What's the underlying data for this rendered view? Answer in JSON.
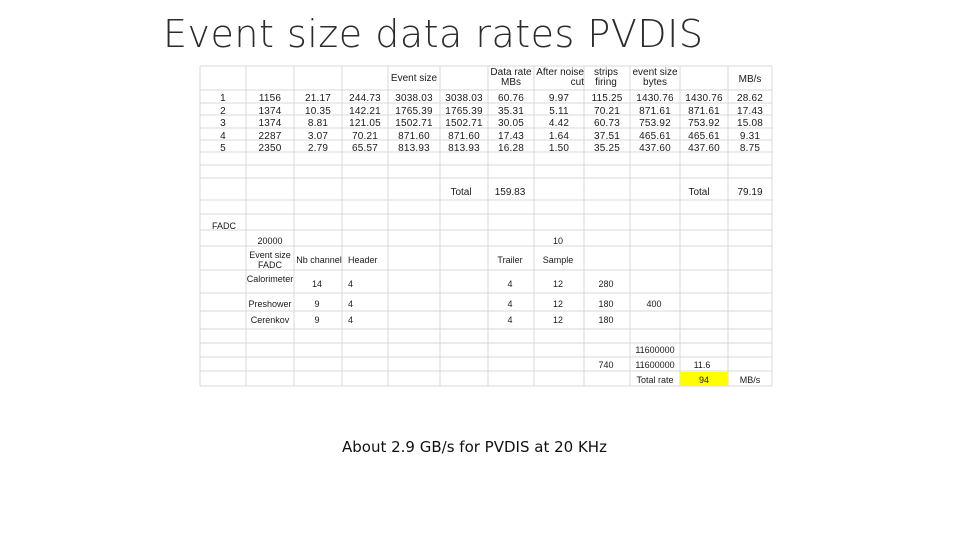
{
  "slide": {
    "title": "Event size data rates PVDIS",
    "footer": "About 2.9 GB/s for PVDIS at 20 KHz"
  },
  "top_table": {
    "headers": {
      "event_size": "Event size",
      "data_rate": "Data rate MBs",
      "after_noise": "After noise cut",
      "strips": "strips firing",
      "event_bytes": "event size bytes",
      "mbs": "MB/s"
    },
    "rows": [
      [
        "1",
        "1156",
        "21.17",
        "244.73",
        "3038.03",
        "3038.03",
        "60.76",
        "9.97",
        "115.25",
        "1430.76",
        "1430.76",
        "28.62"
      ],
      [
        "2",
        "1374",
        "10.35",
        "142.21",
        "1765.39",
        "1765.39",
        "35.31",
        "5.11",
        "70.21",
        "871.61",
        "871.61",
        "17.43"
      ],
      [
        "3",
        "1374",
        "8.81",
        "121.05",
        "1502.71",
        "1502.71",
        "30.05",
        "4.42",
        "60.73",
        "753.92",
        "753.92",
        "15.08"
      ],
      [
        "4",
        "2287",
        "3.07",
        "70.21",
        "871.60",
        "871.60",
        "17.43",
        "1.64",
        "37.51",
        "465.61",
        "465.61",
        "9.31"
      ],
      [
        "5",
        "2350",
        "2.79",
        "65.57",
        "813.93",
        "813.93",
        "16.28",
        "1.50",
        "35.25",
        "437.60",
        "437.60",
        "8.75"
      ]
    ],
    "total_label_1": "Total",
    "total_value_1": "159.83",
    "total_label_2": "Total",
    "total_value_2": "79.19"
  },
  "fadc_table": {
    "section_label": "FADC",
    "rate_value": "20000",
    "ten_value": "10",
    "col_event_size_fadc": "Event size FADC",
    "col_nb_channel": "Nb channel",
    "col_header": "Header",
    "col_trailer": "Trailer",
    "col_sample": "Sample",
    "rows": [
      {
        "name": "Calorimeter",
        "nb": "14",
        "header": "4",
        "trailer": "4",
        "sample": "12",
        "size": "280"
      },
      {
        "name": "Preshower",
        "nb": "9",
        "header": "4",
        "trailer": "4",
        "sample": "12",
        "size": "180"
      },
      {
        "name": "Cerenkov",
        "nb": "9",
        "header": "4",
        "trailer": "4",
        "sample": "12",
        "size": "180"
      }
    ],
    "preshower_extra": "400",
    "sum_value": "740",
    "big1": "11600000",
    "big2": "11600000",
    "big2_rate": "11.6",
    "total_rate_label": "Total rate",
    "total_rate_value": "94",
    "total_rate_unit": "MB/s"
  },
  "colors": {
    "highlight": "#ffff00",
    "grid": "#d9d9d9"
  }
}
